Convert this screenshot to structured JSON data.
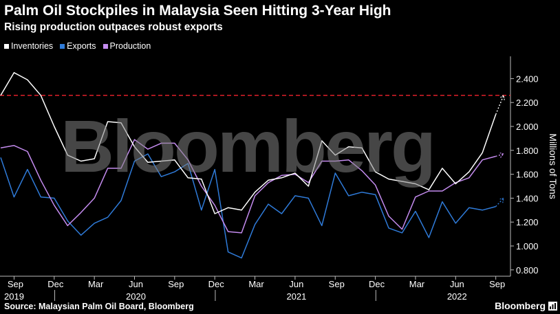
{
  "header": {
    "title": "Palm Oil Stockpiles in Malaysia Seen Hitting 3-Year High",
    "subtitle": "Rising production outpaces robust exports"
  },
  "legend": [
    {
      "label": "Inventories",
      "color": "#ffffff"
    },
    {
      "label": "Exports",
      "color": "#2f7bd9"
    },
    {
      "label": "Production",
      "color": "#c58cf0"
    }
  ],
  "watermark": "Bloomberg",
  "footer": {
    "source": "Source: Malaysian Palm Oil Board, Bloomberg",
    "brand": "Bloomberg"
  },
  "chart_data": {
    "type": "line",
    "ylabel": "Millions of Tons",
    "ylim": [
      0.75,
      2.6
    ],
    "yticks": [
      0.8,
      1.0,
      1.2,
      1.4,
      1.6,
      1.8,
      2.0,
      2.2,
      2.4
    ],
    "ytick_labels": [
      "0.800",
      "1.000",
      "1.200",
      "1.400",
      "1.600",
      "1.800",
      "2.000",
      "2.200",
      "2.400"
    ],
    "x_ticks": [
      {
        "index": 1,
        "label": "Sep"
      },
      {
        "index": 4,
        "label": "Dec"
      },
      {
        "index": 7,
        "label": "Mar"
      },
      {
        "index": 10,
        "label": "Jun"
      },
      {
        "index": 13,
        "label": "Sep"
      },
      {
        "index": 16,
        "label": "Dec"
      },
      {
        "index": 19,
        "label": "Mar"
      },
      {
        "index": 22,
        "label": "Jun"
      },
      {
        "index": 25,
        "label": "Sep"
      },
      {
        "index": 28,
        "label": "Dec"
      },
      {
        "index": 31,
        "label": "Mar"
      },
      {
        "index": 34,
        "label": "Jun"
      },
      {
        "index": 37,
        "label": "Sep"
      }
    ],
    "years": [
      {
        "index": 1,
        "label": "2019",
        "align": "left"
      },
      {
        "index": 10,
        "label": "2020",
        "align": "center"
      },
      {
        "index": 22,
        "label": "2021",
        "align": "center"
      },
      {
        "index": 34,
        "label": "2022",
        "align": "center"
      }
    ],
    "x_range": [
      0,
      37.5
    ],
    "reference_line": {
      "value": 2.26,
      "color": "#e0202a",
      "style": "dashed"
    },
    "series": [
      {
        "name": "Inventories",
        "color": "#ffffff",
        "values": [
          2.26,
          2.45,
          2.39,
          2.26,
          2.0,
          1.76,
          1.71,
          1.73,
          2.04,
          2.03,
          1.83,
          1.7,
          1.71,
          1.72,
          1.57,
          1.56,
          1.27,
          1.32,
          1.3,
          1.45,
          1.55,
          1.57,
          1.61,
          1.5,
          1.88,
          1.76,
          1.83,
          1.82,
          1.62,
          1.56,
          1.54,
          1.52,
          1.47,
          1.65,
          1.52,
          1.62,
          1.78,
          2.1
        ],
        "forecast": 2.26
      },
      {
        "name": "Exports",
        "color": "#2f7bd9",
        "values": [
          1.74,
          1.41,
          1.64,
          1.41,
          1.4,
          1.21,
          1.09,
          1.19,
          1.24,
          1.38,
          1.71,
          1.77,
          1.58,
          1.62,
          1.69,
          1.3,
          1.64,
          0.95,
          0.9,
          1.18,
          1.35,
          1.27,
          1.42,
          1.4,
          1.17,
          1.61,
          1.42,
          1.45,
          1.43,
          1.15,
          1.11,
          1.29,
          1.07,
          1.37,
          1.19,
          1.32,
          1.3,
          1.33
        ],
        "forecast": 1.4
      },
      {
        "name": "Production",
        "color": "#c58cf0",
        "values": [
          1.82,
          1.84,
          1.79,
          1.55,
          1.34,
          1.17,
          1.28,
          1.4,
          1.65,
          1.65,
          1.89,
          1.81,
          1.86,
          1.86,
          1.72,
          1.5,
          1.34,
          1.12,
          1.11,
          1.42,
          1.53,
          1.59,
          1.6,
          1.53,
          1.71,
          1.71,
          1.72,
          1.63,
          1.51,
          1.25,
          1.14,
          1.41,
          1.46,
          1.46,
          1.53,
          1.57,
          1.72,
          1.75
        ],
        "forecast": 1.77
      }
    ]
  }
}
